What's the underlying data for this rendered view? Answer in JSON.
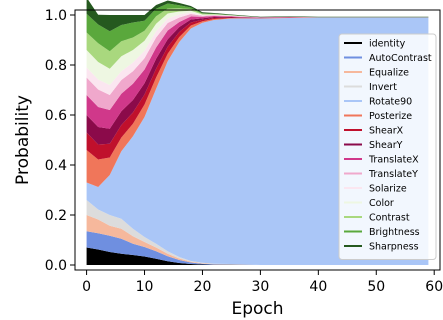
{
  "chart_data": {
    "type": "area",
    "xlabel": "Epoch",
    "ylabel": "Probability",
    "xlim": [
      -2,
      61
    ],
    "ylim": [
      -0.02,
      1.02
    ],
    "xticks": [
      0,
      10,
      20,
      30,
      40,
      50,
      60
    ],
    "yticks": [
      0.0,
      0.2,
      0.4,
      0.6,
      0.8,
      1.0
    ],
    "ytick_labels": [
      "0.0",
      "0.2",
      "0.4",
      "0.6",
      "0.8",
      "1.0"
    ],
    "grid": false,
    "legend_position": "right",
    "x": [
      0,
      2,
      4,
      6,
      8,
      10,
      12,
      14,
      16,
      18,
      20,
      22,
      25,
      30,
      35,
      40,
      45,
      50,
      55,
      59
    ],
    "series": [
      {
        "name": "identity",
        "color": "#000000",
        "values": [
          0.07,
          0.062,
          0.052,
          0.045,
          0.04,
          0.034,
          0.025,
          0.015,
          0.008,
          0.004,
          0.002,
          0.001,
          0.001,
          0,
          0,
          0,
          0,
          0,
          0,
          0
        ]
      },
      {
        "name": "AutoContrast",
        "color": "#6f8fe0",
        "values": [
          0.065,
          0.065,
          0.065,
          0.06,
          0.045,
          0.038,
          0.03,
          0.02,
          0.012,
          0.006,
          0.003,
          0.002,
          0.001,
          0,
          0,
          0,
          0,
          0,
          0,
          0
        ]
      },
      {
        "name": "Equalize",
        "color": "#f6b89c",
        "values": [
          0.065,
          0.055,
          0.04,
          0.04,
          0.03,
          0.02,
          0.015,
          0.01,
          0.006,
          0.003,
          0.002,
          0.001,
          0.001,
          0,
          0,
          0,
          0,
          0,
          0,
          0
        ]
      },
      {
        "name": "Invert",
        "color": "#dcdcdc",
        "values": [
          0.06,
          0.04,
          0.043,
          0.04,
          0.03,
          0.02,
          0.015,
          0.01,
          0.006,
          0.003,
          0.002,
          0.001,
          0.001,
          0,
          0,
          0,
          0,
          0,
          0,
          0
        ]
      },
      {
        "name": "Rotate90",
        "color": "#aac6f7",
        "values": [
          0.07,
          0.09,
          0.16,
          0.27,
          0.37,
          0.48,
          0.62,
          0.76,
          0.86,
          0.93,
          0.96,
          0.975,
          0.982,
          0.986,
          0.988,
          0.99,
          0.99,
          0.99,
          0.99,
          0.99
        ]
      },
      {
        "name": "Posterize",
        "color": "#f0765a",
        "values": [
          0.13,
          0.11,
          0.07,
          0.055,
          0.05,
          0.05,
          0.045,
          0.03,
          0.02,
          0.012,
          0.006,
          0.004,
          0.002,
          0.001,
          0.001,
          0.001,
          0.001,
          0.001,
          0.001,
          0.001
        ]
      },
      {
        "name": "ShearX",
        "color": "#c0102c",
        "values": [
          0.07,
          0.06,
          0.055,
          0.05,
          0.045,
          0.04,
          0.035,
          0.028,
          0.02,
          0.012,
          0.006,
          0.004,
          0.002,
          0.001,
          0.001,
          0,
          0,
          0,
          0,
          0
        ]
      },
      {
        "name": "ShearY",
        "color": "#8b0a4a",
        "values": [
          0.07,
          0.07,
          0.06,
          0.055,
          0.05,
          0.045,
          0.04,
          0.03,
          0.02,
          0.012,
          0.006,
          0.004,
          0.002,
          0.001,
          0.001,
          0,
          0,
          0,
          0,
          0
        ]
      },
      {
        "name": "TranslateX",
        "color": "#d0388a",
        "values": [
          0.08,
          0.08,
          0.075,
          0.07,
          0.065,
          0.055,
          0.045,
          0.035,
          0.02,
          0.012,
          0.006,
          0.004,
          0.002,
          0.001,
          0.001,
          0,
          0,
          0,
          0,
          0
        ]
      },
      {
        "name": "TranslateY",
        "color": "#f0a8cc",
        "values": [
          0.07,
          0.07,
          0.06,
          0.055,
          0.05,
          0.045,
          0.04,
          0.03,
          0.018,
          0.01,
          0.004,
          0.003,
          0.002,
          0.001,
          0.001,
          0,
          0,
          0,
          0,
          0
        ]
      },
      {
        "name": "Solarize",
        "color": "#fbe6f0",
        "values": [
          0.04,
          0.04,
          0.04,
          0.035,
          0.035,
          0.03,
          0.025,
          0.018,
          0.012,
          0.006,
          0.002,
          0.001,
          0.001,
          0,
          0,
          0,
          0,
          0,
          0,
          0
        ]
      },
      {
        "name": "Color",
        "color": "#eef7e2",
        "values": [
          0.07,
          0.07,
          0.065,
          0.06,
          0.05,
          0.04,
          0.03,
          0.02,
          0.012,
          0.007,
          0.003,
          0.002,
          0.001,
          0,
          0,
          0,
          0,
          0,
          0,
          0
        ]
      },
      {
        "name": "Contrast",
        "color": "#a9d87e",
        "values": [
          0.07,
          0.075,
          0.07,
          0.06,
          0.05,
          0.04,
          0.03,
          0.02,
          0.013,
          0.007,
          0.003,
          0.002,
          0.001,
          0,
          0,
          0,
          0,
          0,
          0,
          0
        ]
      },
      {
        "name": "Brightness",
        "color": "#5aa83c",
        "values": [
          0.075,
          0.075,
          0.08,
          0.065,
          0.06,
          0.04,
          0.03,
          0.02,
          0.012,
          0.006,
          0.002,
          0.001,
          0.001,
          0,
          0,
          0,
          0,
          0,
          0,
          0
        ]
      },
      {
        "name": "Sharpness",
        "color": "#25591f",
        "values": [
          0.065,
          0.039,
          0.065,
          0.04,
          0.03,
          0.023,
          0.015,
          0.012,
          0.009,
          0.006,
          0.004,
          0.003,
          0.002,
          0.002,
          0.002,
          0.002,
          0.002,
          0.002,
          0.002,
          0.002
        ]
      }
    ]
  }
}
